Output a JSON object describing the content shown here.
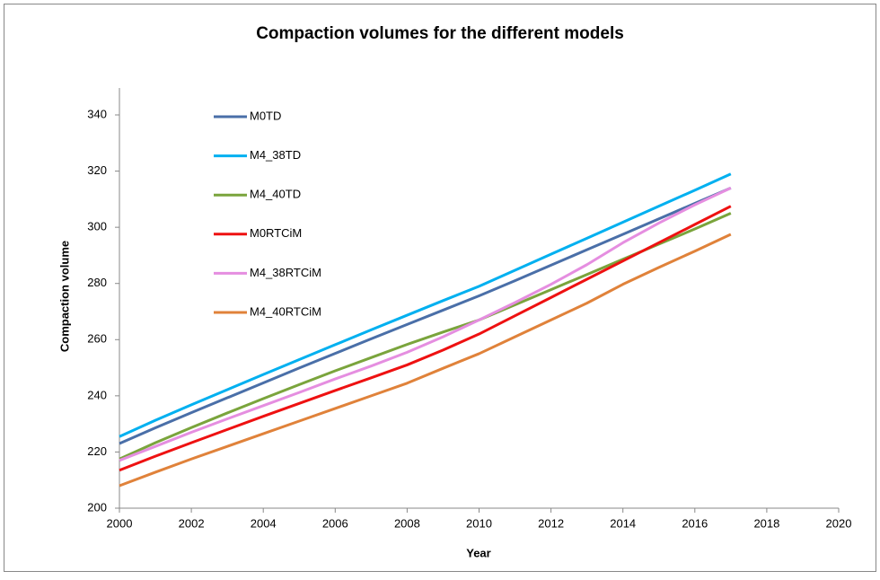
{
  "chart_data": {
    "type": "line",
    "title": "Compaction volumes for the different models",
    "xlabel": "Year",
    "ylabel": "Compaction volume",
    "x": [
      2000,
      2001,
      2002,
      2003,
      2004,
      2005,
      2006,
      2007,
      2008,
      2009,
      2010,
      2011,
      2012,
      2013,
      2014,
      2015,
      2016,
      2017
    ],
    "series": [
      {
        "name": "M0TD",
        "color": "#4a6fa8",
        "values": [
          223,
          228.6,
          234,
          239.3,
          244.6,
          249.9,
          255.1,
          260.3,
          265.4,
          270.5,
          275.6,
          281,
          286.5,
          292,
          297.5,
          303,
          308.5,
          314
        ]
      },
      {
        "name": "M4_38TD",
        "color": "#00b0f0",
        "values": [
          225.5,
          231.3,
          236.8,
          242.2,
          247.6,
          252.9,
          258.2,
          263.5,
          268.7,
          273.9,
          279,
          284.7,
          290.4,
          296.1,
          301.8,
          307.5,
          313.2,
          319
        ]
      },
      {
        "name": "M4_40TD",
        "color": "#7aa43c",
        "values": [
          217.5,
          223.3,
          228.7,
          233.9,
          239,
          244,
          248.9,
          253.6,
          258.3,
          262.7,
          267,
          272.4,
          277.8,
          283.2,
          288.6,
          294,
          299.4,
          305
        ]
      },
      {
        "name": "M0RTCiM",
        "color": "#ee1111",
        "values": [
          213.5,
          218.5,
          223.3,
          228,
          232.7,
          237.3,
          241.9,
          246.4,
          251,
          256.3,
          262,
          268.5,
          275,
          281.5,
          288,
          294.5,
          301,
          307.5
        ]
      },
      {
        "name": "M4_38RTCiM",
        "color": "#e58ee0",
        "values": [
          217,
          222,
          227,
          231.8,
          236.5,
          241.2,
          246,
          250.6,
          255.5,
          261,
          267,
          273.2,
          279.7,
          286.7,
          294.5,
          301.5,
          308,
          314
        ]
      },
      {
        "name": "M4_40RTCiM",
        "color": "#e0823a",
        "values": [
          208,
          212.8,
          217.5,
          222,
          226.5,
          231,
          235.5,
          240,
          244.5,
          249.8,
          255,
          261,
          267,
          273,
          279.7,
          285.7,
          291.5,
          297.5
        ]
      }
    ],
    "xlim": [
      2000,
      2020
    ],
    "xticks": [
      2000,
      2002,
      2004,
      2006,
      2008,
      2010,
      2012,
      2014,
      2016,
      2018,
      2020
    ],
    "ylim": [
      200,
      340
    ],
    "yticks": [
      200,
      220,
      240,
      260,
      280,
      300,
      320,
      340
    ],
    "legend": "upper-left",
    "grid": false
  }
}
